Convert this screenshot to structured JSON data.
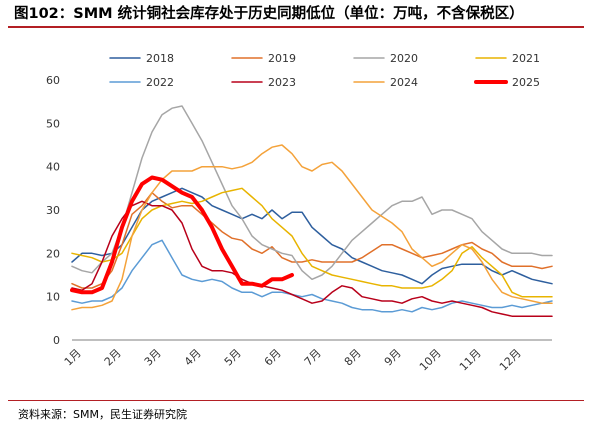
{
  "title": "图102：SMM 统计铜社会库存处于历史同期低位（单位：万吨，不含保税区）",
  "source": "资料来源：SMM，民生证券研究院",
  "chart_data": {
    "type": "line",
    "ylim": [
      0,
      60
    ],
    "yticks": [
      "0",
      "10",
      "20",
      "30",
      "40",
      "50",
      "60"
    ],
    "xticks": [
      "1月",
      "2月",
      "3月",
      "4月",
      "5月",
      "6月",
      "7月",
      "8月",
      "9月",
      "10月",
      "11月",
      "12月"
    ],
    "xrange": [
      1,
      13
    ],
    "legend_position": "top",
    "series": [
      {
        "name": "2018",
        "color": "#2e5f9e",
        "width": 1.5,
        "x": [
          1.0,
          1.25,
          1.5,
          1.75,
          2.0,
          2.25,
          2.5,
          2.75,
          3.0,
          3.25,
          3.5,
          3.75,
          4.0,
          4.25,
          4.5,
          4.75,
          5.0,
          5.25,
          5.5,
          5.75,
          6.0,
          6.25,
          6.5,
          6.75,
          7.0,
          7.25,
          7.5,
          7.75,
          8.0,
          8.25,
          8.5,
          8.75,
          9.0,
          9.25,
          9.5,
          9.75,
          10.0,
          10.25,
          10.5,
          10.75,
          11.0,
          11.25,
          11.5,
          11.75,
          12.0,
          12.25,
          12.5,
          12.75,
          13.0
        ],
        "y": [
          18,
          20,
          20,
          19.5,
          20,
          22,
          26,
          30,
          32,
          33,
          34,
          35,
          34,
          33,
          31,
          30,
          29,
          28,
          29,
          28,
          30,
          28,
          29.5,
          29.5,
          26,
          24,
          22,
          21,
          19,
          18,
          17,
          16,
          15.5,
          15,
          14,
          13,
          15,
          16.5,
          17,
          17.5,
          17.5,
          17.5,
          16,
          15,
          16,
          15,
          14,
          13.5,
          13
        ]
      },
      {
        "name": "2019",
        "color": "#e0702a",
        "width": 1.5,
        "x": [
          1.0,
          1.25,
          1.5,
          1.75,
          2.0,
          2.25,
          2.5,
          2.75,
          3.0,
          3.25,
          3.5,
          3.75,
          4.0,
          4.25,
          4.5,
          4.75,
          5.0,
          5.25,
          5.5,
          5.75,
          6.0,
          6.25,
          6.5,
          6.75,
          7.0,
          7.25,
          7.5,
          7.75,
          8.0,
          8.25,
          8.5,
          8.75,
          9.0,
          9.25,
          9.5,
          9.75,
          10.0,
          10.25,
          10.5,
          10.75,
          11.0,
          11.25,
          11.5,
          11.75,
          12.0,
          12.25,
          12.5,
          12.75,
          13.0
        ],
        "y": [
          13,
          12,
          12,
          13,
          16,
          22,
          29,
          31,
          34,
          32,
          30.5,
          31,
          31,
          29,
          27,
          25,
          23.5,
          23,
          21,
          20,
          21.5,
          19,
          18,
          18,
          18.5,
          18,
          18,
          18,
          18,
          19,
          20.5,
          22,
          22,
          21,
          20,
          19,
          19.5,
          20,
          21,
          22,
          22.5,
          21,
          20,
          18,
          17,
          17,
          17,
          16.5,
          17
        ]
      },
      {
        "name": "2020",
        "color": "#a6a6a6",
        "width": 1.5,
        "x": [
          1.0,
          1.25,
          1.5,
          1.75,
          2.0,
          2.25,
          2.5,
          2.75,
          3.0,
          3.25,
          3.5,
          3.75,
          4.0,
          4.25,
          4.5,
          4.75,
          5.0,
          5.25,
          5.5,
          5.75,
          6.0,
          6.25,
          6.5,
          6.75,
          7.0,
          7.25,
          7.5,
          7.75,
          8.0,
          8.25,
          8.5,
          8.75,
          9.0,
          9.25,
          9.5,
          9.75,
          10.0,
          10.25,
          10.5,
          10.75,
          11.0,
          11.25,
          11.5,
          11.75,
          12.0,
          12.25,
          12.5,
          12.75,
          13.0
        ],
        "y": [
          17,
          16,
          15.5,
          18,
          20,
          26,
          34,
          42,
          48,
          52,
          53.5,
          54,
          50,
          46,
          41,
          36,
          31,
          28,
          24,
          22,
          21,
          20,
          19.5,
          16,
          14,
          15,
          17,
          20,
          23,
          25,
          27,
          29,
          31,
          32,
          32,
          33,
          29,
          30,
          30,
          29,
          28,
          25,
          23,
          21,
          20,
          20,
          20,
          19.5,
          19.5
        ]
      },
      {
        "name": "2021",
        "color": "#e8b400",
        "width": 1.5,
        "x": [
          1.0,
          1.25,
          1.5,
          1.75,
          2.0,
          2.25,
          2.5,
          2.75,
          3.0,
          3.25,
          3.5,
          3.75,
          4.0,
          4.25,
          4.5,
          4.75,
          5.0,
          5.25,
          5.5,
          5.75,
          6.0,
          6.25,
          6.5,
          6.75,
          7.0,
          7.25,
          7.5,
          7.75,
          8.0,
          8.25,
          8.5,
          8.75,
          9.0,
          9.25,
          9.5,
          9.75,
          10.0,
          10.25,
          10.5,
          10.75,
          11.0,
          11.25,
          11.5,
          11.75,
          12.0,
          12.25,
          12.5,
          12.75,
          13.0
        ],
        "y": [
          20,
          19.5,
          19,
          18,
          18.5,
          20,
          24,
          28,
          30,
          31,
          31.5,
          32,
          31.5,
          32,
          33,
          34,
          34.5,
          35,
          33,
          31,
          28,
          26,
          24,
          20,
          17,
          16,
          15,
          14.5,
          14,
          13.5,
          13,
          12.5,
          12.5,
          12,
          12,
          12,
          12.5,
          14,
          16,
          20,
          21.5,
          19,
          17,
          15,
          11,
          10,
          10,
          10,
          10
        ]
      },
      {
        "name": "2022",
        "color": "#5b9bd5",
        "width": 1.5,
        "x": [
          1.0,
          1.25,
          1.5,
          1.75,
          2.0,
          2.25,
          2.5,
          2.75,
          3.0,
          3.25,
          3.5,
          3.75,
          4.0,
          4.25,
          4.5,
          4.75,
          5.0,
          5.25,
          5.5,
          5.75,
          6.0,
          6.25,
          6.5,
          6.75,
          7.0,
          7.25,
          7.5,
          7.75,
          8.0,
          8.25,
          8.5,
          8.75,
          9.0,
          9.25,
          9.5,
          9.75,
          10.0,
          10.25,
          10.5,
          10.75,
          11.0,
          11.25,
          11.5,
          11.75,
          12.0,
          12.25,
          12.5,
          12.75,
          13.0
        ],
        "y": [
          9,
          8.5,
          9,
          9,
          10,
          12,
          16,
          19,
          22,
          23,
          19,
          15,
          14,
          13.5,
          14,
          13.5,
          12,
          11,
          11,
          10,
          11,
          11,
          10.5,
          10,
          10.5,
          9.5,
          9,
          8.5,
          7.5,
          7,
          7,
          6.5,
          6.5,
          7,
          6.5,
          7.5,
          7,
          7.5,
          8.5,
          9,
          8.5,
          8,
          7.5,
          7.5,
          8,
          7.5,
          8,
          8.5,
          9
        ]
      },
      {
        "name": "2023",
        "color": "#b8001a",
        "width": 1.5,
        "x": [
          1.0,
          1.25,
          1.5,
          1.75,
          2.0,
          2.25,
          2.5,
          2.75,
          3.0,
          3.25,
          3.5,
          3.75,
          4.0,
          4.25,
          4.5,
          4.75,
          5.0,
          5.25,
          5.5,
          5.75,
          6.0,
          6.25,
          6.5,
          6.75,
          7.0,
          7.25,
          7.5,
          7.75,
          8.0,
          8.25,
          8.5,
          8.75,
          9.0,
          9.25,
          9.5,
          9.75,
          10.0,
          10.25,
          10.5,
          10.75,
          11.0,
          11.25,
          11.5,
          11.75,
          12.0,
          12.25,
          12.5,
          12.75,
          13.0
        ],
        "y": [
          12,
          11.5,
          13,
          18,
          24,
          28,
          31,
          32,
          31,
          31,
          30,
          27,
          21,
          17,
          16,
          16,
          15.5,
          14,
          13,
          12.5,
          12,
          11.5,
          10.5,
          9.5,
          8.5,
          9,
          11,
          12.5,
          12,
          10,
          9.5,
          9,
          9,
          8.5,
          9.5,
          10,
          9,
          8.5,
          9,
          8.5,
          8,
          7.5,
          6.5,
          6,
          5.5,
          5.5,
          5.5,
          5.5,
          5.5
        ]
      },
      {
        "name": "2024",
        "color": "#f4a23a",
        "width": 1.5,
        "x": [
          1.0,
          1.25,
          1.5,
          1.75,
          2.0,
          2.25,
          2.5,
          2.75,
          3.0,
          3.25,
          3.5,
          3.75,
          4.0,
          4.25,
          4.5,
          4.75,
          5.0,
          5.25,
          5.5,
          5.75,
          6.0,
          6.25,
          6.5,
          6.75,
          7.0,
          7.25,
          7.5,
          7.75,
          8.0,
          8.25,
          8.5,
          8.75,
          9.0,
          9.25,
          9.5,
          9.75,
          10.0,
          10.25,
          10.5,
          10.75,
          11.0,
          11.25,
          11.5,
          11.75,
          12.0,
          12.25,
          12.5,
          12.75,
          13.0
        ],
        "y": [
          7,
          7.5,
          7.5,
          8,
          9,
          14,
          24,
          30,
          34,
          37,
          39,
          39,
          39,
          40,
          40,
          40,
          39.5,
          40,
          41,
          43,
          44.5,
          45,
          43,
          40,
          39,
          40.5,
          41,
          39,
          36,
          33,
          30,
          28.5,
          27,
          25,
          21,
          19,
          17,
          18,
          20,
          22,
          21,
          18,
          14,
          11,
          10,
          9.5,
          9,
          8.5,
          8.5
        ]
      },
      {
        "name": "2025",
        "color": "#ff0000",
        "width": 4,
        "x": [
          1.0,
          1.25,
          1.5,
          1.75,
          2.0,
          2.25,
          2.5,
          2.75,
          3.0,
          3.25,
          3.5,
          3.75,
          4.0,
          4.25,
          4.5,
          4.75,
          5.0,
          5.25,
          5.5,
          5.75,
          6.0,
          6.25,
          6.5
        ],
        "y": [
          11.5,
          11,
          11,
          12,
          18,
          26,
          32,
          36,
          37.5,
          37,
          35.5,
          34,
          33,
          30,
          26,
          21,
          17,
          13,
          13,
          12.5,
          14,
          14,
          15
        ]
      }
    ]
  }
}
